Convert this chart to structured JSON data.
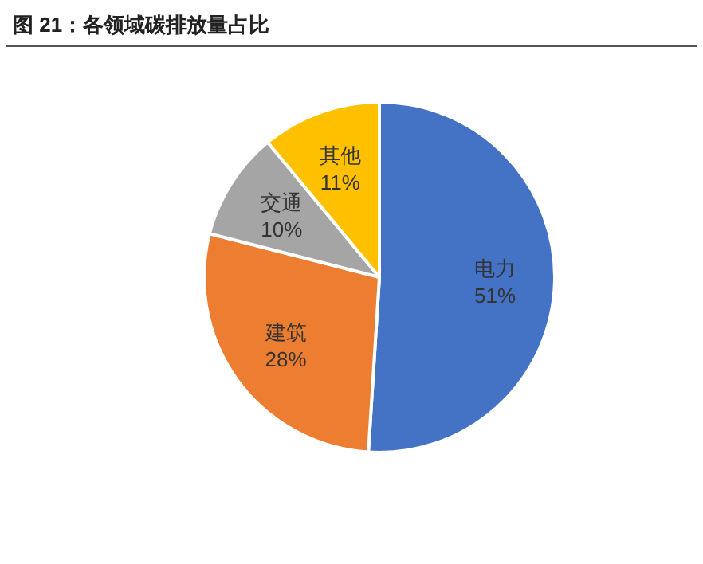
{
  "chart_data": {
    "type": "pie",
    "title": "图 21：各领域碳排放量占比",
    "categories": [
      "电力",
      "建筑",
      "交通",
      "其他"
    ],
    "values": [
      51,
      28,
      10,
      11
    ],
    "value_labels": [
      "51%",
      "28%",
      "10%",
      "11%"
    ],
    "colors": [
      "#4472c4",
      "#ed7d31",
      "#a5a5a5",
      "#ffc000"
    ]
  }
}
